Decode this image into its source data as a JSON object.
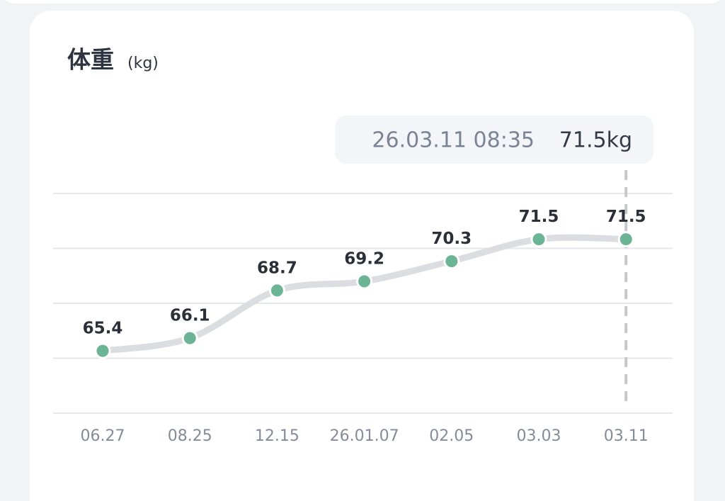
{
  "chart_data": {
    "type": "line",
    "title": "体重",
    "unit": "(kg)",
    "categories": [
      "06.27",
      "08.25",
      "12.15",
      "26.01.07",
      "02.05",
      "03.03",
      "03.11"
    ],
    "values": [
      65.4,
      66.1,
      68.7,
      69.2,
      70.3,
      71.5,
      71.5
    ],
    "color": "#6bb596",
    "line_color": "#dcdde0",
    "ylim": [
      62,
      74
    ],
    "yticks": [
      62,
      65,
      68,
      71,
      74
    ],
    "grid": true,
    "selected": 6,
    "tooltip": {
      "time": "26.03.11 08:35",
      "value_label": "71.5kg"
    }
  }
}
